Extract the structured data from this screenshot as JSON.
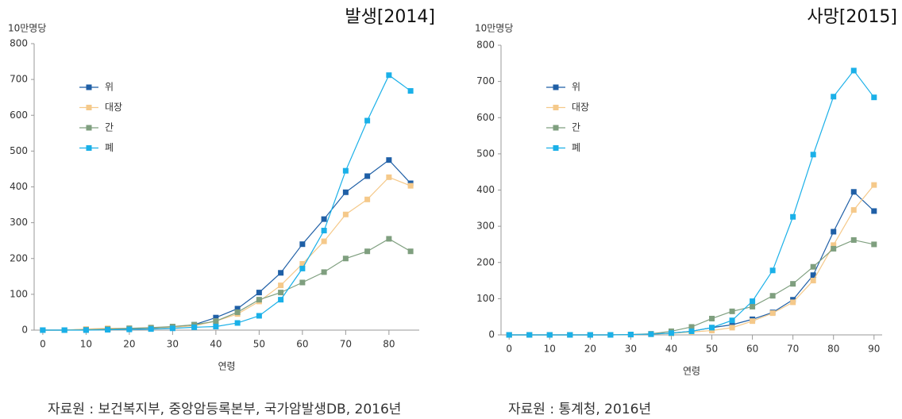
{
  "chart_data": [
    {
      "type": "line",
      "title": "발생[2014]",
      "ylabel": "10만명당",
      "xlabel": "연령",
      "source": "자료원 : 보건복지부, 중앙암등록본부, 국가암발생DB, 2016년",
      "x": [
        0,
        5,
        10,
        15,
        20,
        25,
        30,
        35,
        40,
        45,
        50,
        55,
        60,
        65,
        70,
        75,
        80,
        85
      ],
      "xlim": [
        -2,
        87
      ],
      "xticks": [
        0,
        10,
        20,
        30,
        40,
        50,
        60,
        70,
        80
      ],
      "ylim": [
        0,
        800
      ],
      "yticks": [
        0,
        100,
        200,
        300,
        400,
        500,
        600,
        700,
        800
      ],
      "series": [
        {
          "name": "위",
          "color": "#1f5fa6",
          "values": [
            0,
            0,
            2,
            3,
            4,
            5,
            8,
            15,
            35,
            60,
            105,
            160,
            240,
            310,
            385,
            430,
            475,
            410
          ]
        },
        {
          "name": "대장",
          "color": "#f5c98a",
          "values": [
            0,
            0,
            3,
            5,
            5,
            6,
            8,
            12,
            25,
            45,
            80,
            125,
            185,
            248,
            323,
            365,
            427,
            403
          ]
        },
        {
          "name": "간",
          "color": "#7f9f7f",
          "values": [
            0,
            0,
            1,
            3,
            5,
            7,
            10,
            15,
            25,
            50,
            85,
            105,
            133,
            162,
            200,
            220,
            255,
            220
          ]
        },
        {
          "name": "폐",
          "color": "#1ab0e8",
          "values": [
            0,
            0,
            0,
            1,
            2,
            3,
            5,
            8,
            10,
            20,
            40,
            85,
            172,
            278,
            445,
            585,
            712,
            668
          ]
        }
      ]
    },
    {
      "type": "line",
      "title": "사망[2015]",
      "ylabel": "10만명당",
      "xlabel": "연령",
      "source": "자료원 : 통계청, 2016년",
      "x": [
        0,
        5,
        10,
        15,
        20,
        25,
        30,
        35,
        40,
        45,
        50,
        55,
        60,
        65,
        70,
        75,
        80,
        85,
        90
      ],
      "xlim": [
        -2,
        92
      ],
      "xticks": [
        0,
        10,
        20,
        30,
        40,
        50,
        60,
        70,
        80,
        90
      ],
      "ylim": [
        0,
        800
      ],
      "yticks": [
        0,
        100,
        200,
        300,
        400,
        500,
        600,
        700,
        800
      ],
      "series": [
        {
          "name": "위",
          "color": "#1f5fa6",
          "values": [
            0,
            0,
            0,
            0,
            0,
            0,
            1,
            2,
            5,
            10,
            20,
            28,
            43,
            62,
            97,
            165,
            285,
            395,
            342
          ]
        },
        {
          "name": "대장",
          "color": "#f5c98a",
          "values": [
            0,
            0,
            0,
            0,
            0,
            0,
            1,
            2,
            4,
            8,
            12,
            20,
            38,
            60,
            90,
            150,
            248,
            345,
            414
          ]
        },
        {
          "name": "간",
          "color": "#7f9f7f",
          "values": [
            0,
            0,
            0,
            0,
            0,
            0,
            1,
            3,
            10,
            22,
            45,
            65,
            78,
            108,
            141,
            188,
            238,
            262,
            250
          ]
        },
        {
          "name": "폐",
          "color": "#1ab0e8",
          "values": [
            0,
            0,
            0,
            0,
            0,
            0,
            1,
            2,
            5,
            10,
            20,
            40,
            93,
            178,
            326,
            498,
            658,
            730,
            656
          ]
        }
      ]
    }
  ]
}
